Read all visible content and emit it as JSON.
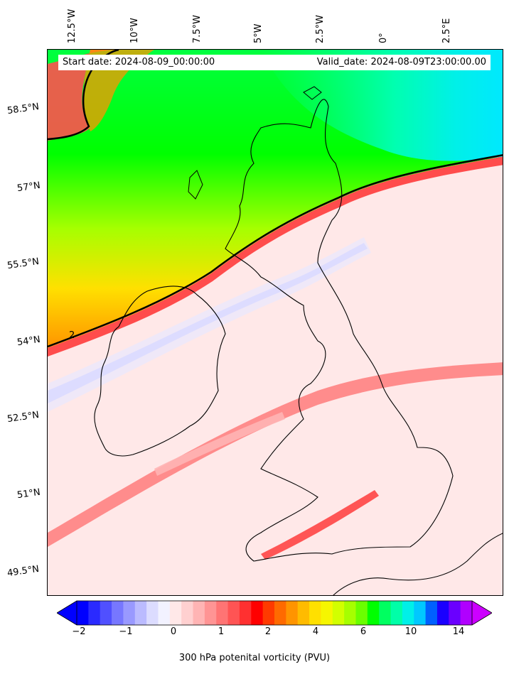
{
  "header": {
    "start_date": "Start date: 2024-08-09_00:00:00",
    "valid_date": "Valid_date: 2024-08-09T23:00:00.00"
  },
  "map": {
    "lon_labels": [
      "12.5°W",
      "10°W",
      "7.5°W",
      "5°W",
      "2.5°W",
      "0°",
      "2.5°E"
    ],
    "lat_labels": [
      "58.5°N",
      "57°N",
      "55.5°N",
      "54°N",
      "52.5°N",
      "51°N",
      "49.5°N"
    ],
    "contour_label": "2"
  },
  "colorbar": {
    "label": "300 hPa potenital vorticity (PVU)",
    "ticks": [
      "−2",
      "−1",
      "0",
      "1",
      "2",
      "4",
      "6",
      "10",
      "14"
    ],
    "colors": [
      "#0000ff",
      "#2a2aff",
      "#5050ff",
      "#7777ff",
      "#9999ff",
      "#bbbbff",
      "#dcdcff",
      "#f2f2ff",
      "#ffe8e8",
      "#ffd0d0",
      "#ffb4b4",
      "#ff9494",
      "#ff7474",
      "#ff5454",
      "#ff3030",
      "#ff0000",
      "#ff3a00",
      "#ff6a00",
      "#ff9400",
      "#ffbb00",
      "#ffe000",
      "#f6f600",
      "#d2ff00",
      "#a6ff00",
      "#6aff00",
      "#00ff00",
      "#00ff60",
      "#00ffa8",
      "#00f0e8",
      "#00c8ff",
      "#0060ff",
      "#1a00ff",
      "#6a00ff",
      "#b000ff"
    ],
    "under_color": "#0000ff",
    "over_color": "#cc00ff"
  }
}
